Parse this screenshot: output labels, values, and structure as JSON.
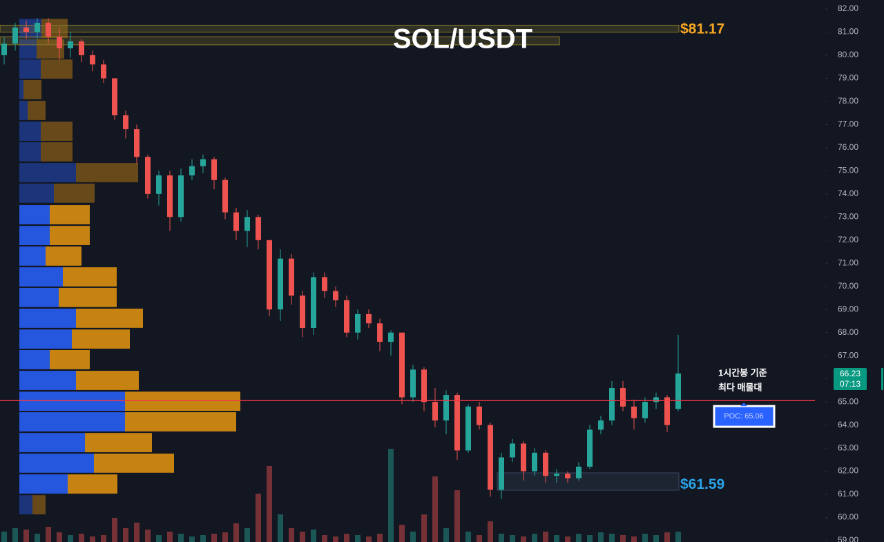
{
  "chart_data": {
    "type": "candlestick",
    "title": "SOL/USDT",
    "ylim": [
      59,
      82
    ],
    "yticks": [
      {
        "value": 59,
        "label": "59.00"
      },
      {
        "value": 60,
        "label": "60.00"
      },
      {
        "value": 61,
        "label": "61.00"
      },
      {
        "value": 62,
        "label": "62.00"
      },
      {
        "value": 63,
        "label": "63.00"
      },
      {
        "value": 64,
        "label": "64.00"
      },
      {
        "value": 65,
        "label": "65.00"
      },
      {
        "value": 66,
        "label": "66.00"
      },
      {
        "value": 67,
        "label": "67.00"
      },
      {
        "value": 68,
        "label": "68.00"
      },
      {
        "value": 69,
        "label": "69.00"
      },
      {
        "value": 70,
        "label": "70.00"
      },
      {
        "value": 71,
        "label": "71.00"
      },
      {
        "value": 72,
        "label": "72.00"
      },
      {
        "value": 73,
        "label": "73.00"
      },
      {
        "value": 74,
        "label": "74.00"
      },
      {
        "value": 75,
        "label": "75.00"
      },
      {
        "value": 76,
        "label": "76.00"
      },
      {
        "value": 77,
        "label": "77.00"
      },
      {
        "value": 78,
        "label": "78.00"
      },
      {
        "value": 79,
        "label": "79.00"
      },
      {
        "value": 80,
        "label": "80.00"
      },
      {
        "value": 81,
        "label": "81.00"
      },
      {
        "value": 82,
        "label": "82.00"
      }
    ],
    "open": [
      80.0,
      80.5,
      81.2,
      81.0,
      81.4,
      80.8,
      80.3,
      80.6,
      80.0,
      79.6,
      79.0,
      77.4,
      76.8,
      75.6,
      74.0,
      74.8,
      73.0,
      74.8,
      75.2,
      75.5,
      74.6,
      73.2,
      72.4,
      73.0,
      72.0,
      69.0,
      71.2,
      69.6,
      68.2,
      70.4,
      69.8,
      69.4,
      68.0,
      68.8,
      68.4,
      67.6,
      68.0,
      65.2,
      66.4,
      65.0,
      64.2,
      65.3,
      62.9,
      64.8,
      64.0,
      61.2,
      62.6,
      63.2,
      62.0,
      62.8,
      61.8,
      61.9,
      61.7,
      62.2,
      63.8,
      64.2,
      65.6,
      64.8,
      64.3,
      65.0,
      65.2,
      64.7
    ],
    "high": [
      80.8,
      81.4,
      81.5,
      81.6,
      81.6,
      81.2,
      81.0,
      80.7,
      80.2,
      79.8,
      79.0,
      77.6,
      77.0,
      75.7,
      75.0,
      75.0,
      75.1,
      75.5,
      75.7,
      75.6,
      74.7,
      73.4,
      73.3,
      73.1,
      72.0,
      71.6,
      71.4,
      69.8,
      70.6,
      70.6,
      70.0,
      69.6,
      69.0,
      69.0,
      68.6,
      68.1,
      68.0,
      66.6,
      66.5,
      65.6,
      65.5,
      65.4,
      64.9,
      65.0,
      64.1,
      62.8,
      63.4,
      63.3,
      63.0,
      62.9,
      62.1,
      62.0,
      62.4,
      64.0,
      64.4,
      65.9,
      65.9,
      65.1,
      65.2,
      65.4,
      65.3,
      67.9
    ],
    "low": [
      79.6,
      80.2,
      80.7,
      80.7,
      80.5,
      79.8,
      79.9,
      79.7,
      79.3,
      78.8,
      77.2,
      76.4,
      75.3,
      73.8,
      73.5,
      72.4,
      72.8,
      74.6,
      74.9,
      74.2,
      72.9,
      72.0,
      71.7,
      71.6,
      68.7,
      68.5,
      69.2,
      67.8,
      67.9,
      69.5,
      69.1,
      67.8,
      67.7,
      68.2,
      67.2,
      67.0,
      64.9,
      65.0,
      64.6,
      63.9,
      63.6,
      62.5,
      62.8,
      63.8,
      60.9,
      60.8,
      62.4,
      61.6,
      61.8,
      61.5,
      61.5,
      61.5,
      61.6,
      62.1,
      63.6,
      64.0,
      64.6,
      63.8,
      64.1,
      64.7,
      63.7,
      64.6
    ],
    "close": [
      80.5,
      81.2,
      81.0,
      81.4,
      80.8,
      80.3,
      80.6,
      80.0,
      79.6,
      79.0,
      77.4,
      76.8,
      75.6,
      74.0,
      74.8,
      73.0,
      74.8,
      75.2,
      75.5,
      74.6,
      73.2,
      72.4,
      73.0,
      72.0,
      69.0,
      71.2,
      69.6,
      68.2,
      70.4,
      69.8,
      69.4,
      68.0,
      68.8,
      68.4,
      67.6,
      68.0,
      65.2,
      66.4,
      65.0,
      64.2,
      65.3,
      62.9,
      64.8,
      64.0,
      61.2,
      62.6,
      63.2,
      62.0,
      62.8,
      61.8,
      61.9,
      61.7,
      62.2,
      63.8,
      64.2,
      65.6,
      64.8,
      64.3,
      65.0,
      65.2,
      64.0,
      66.23
    ],
    "volume": [
      15,
      20,
      18,
      12,
      22,
      14,
      10,
      12,
      8,
      10,
      35,
      20,
      28,
      18,
      10,
      15,
      12,
      8,
      10,
      12,
      14,
      27,
      20,
      70,
      110,
      40,
      20,
      15,
      18,
      10,
      8,
      12,
      10,
      8,
      12,
      135,
      25,
      15,
      40,
      95,
      20,
      75,
      15,
      10,
      30,
      12,
      10,
      8,
      12,
      15,
      10,
      8,
      12,
      10,
      14,
      12,
      10,
      8,
      12,
      10,
      14,
      15
    ],
    "vlim": [
      0,
      200
    ],
    "up_color": "#26a69a",
    "down_color": "#ef5350",
    "volume_profile": {
      "price": [
        81.16,
        80.27,
        79.4,
        78.51,
        77.61,
        76.71,
        75.82,
        74.92,
        74.03,
        73.1,
        72.2,
        71.31,
        70.41,
        69.52,
        68.62,
        67.72,
        66.83,
        65.93,
        65.03,
        64.14,
        63.24,
        62.35,
        61.45,
        60.55
      ],
      "buy": [
        32,
        25,
        31,
        6,
        12,
        31,
        31,
        82,
        50,
        44,
        44,
        38,
        63,
        57,
        82,
        76,
        44,
        82,
        153,
        153,
        95,
        108,
        70,
        19
      ],
      "sell": [
        38,
        40,
        46,
        26,
        26,
        46,
        46,
        90,
        59,
        58,
        58,
        52,
        78,
        84,
        97,
        84,
        58,
        91,
        167,
        161,
        97,
        116,
        72,
        19
      ],
      "buy_color": "#2962ff",
      "sell_color": "#e6960f",
      "value_area": [
        61.0,
        73.6
      ]
    },
    "zones": [
      {
        "top": 81.3,
        "bottom": 81.0,
        "color": "#8a7a2a"
      },
      {
        "top": 80.8,
        "bottom": 80.45,
        "color": "#8a7a2a"
      },
      {
        "top": 61.93,
        "bottom": 61.18,
        "color": "#3a4a63"
      }
    ],
    "levels": [
      {
        "value": 81.17,
        "label": "$81.17",
        "color": "#f5a623"
      },
      {
        "value": 61.59,
        "label": "$61.59",
        "color": "#2aa3e6"
      }
    ],
    "poc": {
      "value": 65.06,
      "label": "POC: 65.06",
      "color": "#f23645"
    },
    "note": [
      "1시간봉 기준",
      "최다 매물대"
    ],
    "last_price": 66.23,
    "countdown": "07:13"
  }
}
